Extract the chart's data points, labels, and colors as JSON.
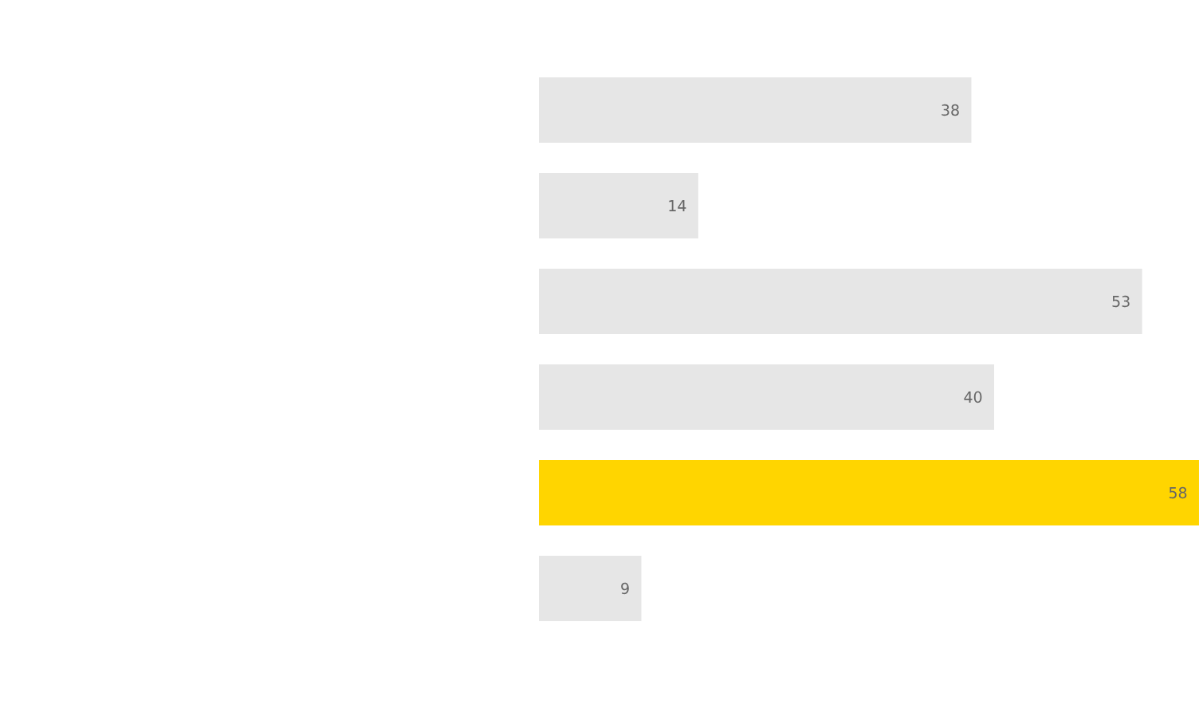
{
  "chart_data": {
    "type": "bar",
    "orientation": "horizontal",
    "categories": [
      null,
      null,
      null,
      null,
      null,
      null
    ],
    "values": [
      38,
      14,
      53,
      40,
      58,
      9
    ],
    "colors": [
      "#e6e6e6",
      "#e6e6e6",
      "#e6e6e6",
      "#e6e6e6",
      "#ffd500",
      "#e6e6e6"
    ],
    "xlim": [
      0,
      58
    ],
    "data_labels": true
  }
}
